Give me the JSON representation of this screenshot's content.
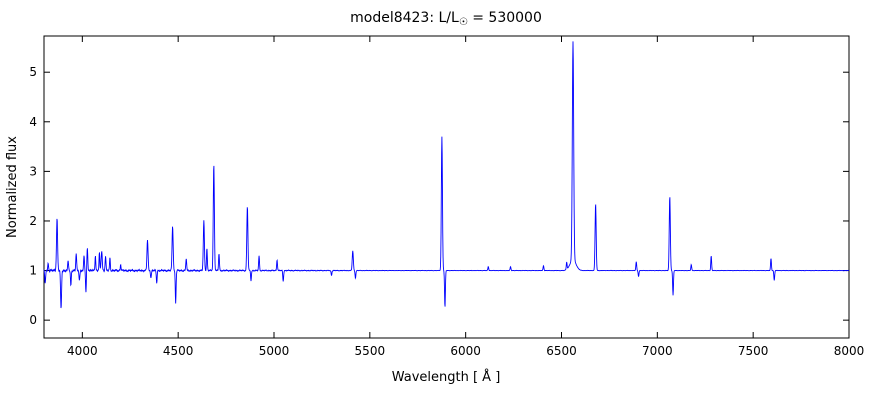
{
  "figure": {
    "title_prefix": "model8423: L/L",
    "title_sub": "☉",
    "title_suffix": " = 530000"
  },
  "chart_data": {
    "type": "line",
    "title": "model8423: L/L☉ = 530000",
    "xlabel": "Wavelength [ Å ]",
    "ylabel": "Normalized flux",
    "xlim": [
      3800,
      8000
    ],
    "ylim": [
      -0.36,
      5.73
    ],
    "xticks": [
      4000,
      4500,
      5000,
      5500,
      6000,
      6500,
      7000,
      7500,
      8000
    ],
    "yticks": [
      0,
      1,
      2,
      3,
      4,
      5
    ],
    "legend": null,
    "grid": false,
    "line_color": "#0000ff",
    "continuum": 1.0,
    "noise": {
      "amplitude": 0.013,
      "fade_end": 5600,
      "baseline": 0.15
    },
    "features": [
      {
        "center": 3806,
        "amp": -0.28,
        "width": 3
      },
      {
        "center": 3822,
        "amp": 0.15,
        "width": 3
      },
      {
        "center": 3868,
        "amp": 1.05,
        "width": 4
      },
      {
        "center": 3889,
        "amp": -0.8,
        "width": 3.5
      },
      {
        "center": 3926,
        "amp": 0.2,
        "width": 3
      },
      {
        "center": 3940,
        "amp": -0.3,
        "width": 3
      },
      {
        "center": 3968,
        "amp": 0.35,
        "width": 3
      },
      {
        "center": 3985,
        "amp": -0.2,
        "width": 3
      },
      {
        "center": 4009,
        "amp": 0.3,
        "width": 3
      },
      {
        "center": 4019,
        "amp": -0.45,
        "width": 3
      },
      {
        "center": 4026,
        "amp": 0.45,
        "width": 3.5
      },
      {
        "center": 4068,
        "amp": 0.3,
        "width": 3
      },
      {
        "center": 4089,
        "amp": 0.35,
        "width": 3
      },
      {
        "center": 4101,
        "amp": 0.4,
        "width": 4
      },
      {
        "center": 4121,
        "amp": 0.3,
        "width": 3
      },
      {
        "center": 4144,
        "amp": 0.25,
        "width": 3
      },
      {
        "center": 4200,
        "amp": 0.12,
        "width": 3
      },
      {
        "center": 4340,
        "amp": 0.62,
        "width": 4
      },
      {
        "center": 4358,
        "amp": -0.15,
        "width": 3
      },
      {
        "center": 4388,
        "amp": -0.25,
        "width": 3
      },
      {
        "center": 4471,
        "amp": 0.9,
        "width": 4
      },
      {
        "center": 4487,
        "amp": -0.65,
        "width": 3
      },
      {
        "center": 4542,
        "amp": 0.25,
        "width": 3
      },
      {
        "center": 4634,
        "amp": 1.0,
        "width": 4
      },
      {
        "center": 4650,
        "amp": 0.45,
        "width": 3
      },
      {
        "center": 4686,
        "amp": 2.15,
        "width": 4
      },
      {
        "center": 4713,
        "amp": 0.35,
        "width": 3
      },
      {
        "center": 4861,
        "amp": 1.3,
        "width": 4
      },
      {
        "center": 4880,
        "amp": -0.2,
        "width": 3
      },
      {
        "center": 4922,
        "amp": 0.3,
        "width": 3
      },
      {
        "center": 5016,
        "amp": 0.22,
        "width": 3
      },
      {
        "center": 5048,
        "amp": -0.22,
        "width": 3
      },
      {
        "center": 5300,
        "amp": -0.1,
        "width": 3
      },
      {
        "center": 5411,
        "amp": 0.4,
        "width": 4
      },
      {
        "center": 5425,
        "amp": -0.15,
        "width": 3
      },
      {
        "center": 5876,
        "amp": 2.7,
        "width": 4
      },
      {
        "center": 5892,
        "amp": -0.75,
        "width": 3
      },
      {
        "center": 6118,
        "amp": 0.08,
        "width": 3
      },
      {
        "center": 6234,
        "amp": 0.08,
        "width": 3
      },
      {
        "center": 6406,
        "amp": 0.1,
        "width": 3
      },
      {
        "center": 6527,
        "amp": 0.15,
        "width": 3
      },
      {
        "center": 6560,
        "amp": 4.4,
        "width": 5
      },
      {
        "center": 6560,
        "amp": 0.22,
        "width": 22
      },
      {
        "center": 6678,
        "amp": 1.35,
        "width": 4
      },
      {
        "center": 6890,
        "amp": 0.18,
        "width": 3
      },
      {
        "center": 6902,
        "amp": -0.12,
        "width": 3
      },
      {
        "center": 7065,
        "amp": 1.5,
        "width": 4
      },
      {
        "center": 7082,
        "amp": -0.5,
        "width": 3
      },
      {
        "center": 7177,
        "amp": 0.12,
        "width": 3
      },
      {
        "center": 7281,
        "amp": 0.3,
        "width": 3
      },
      {
        "center": 7593,
        "amp": 0.25,
        "width": 3
      },
      {
        "center": 7610,
        "amp": -0.2,
        "width": 3
      }
    ]
  }
}
